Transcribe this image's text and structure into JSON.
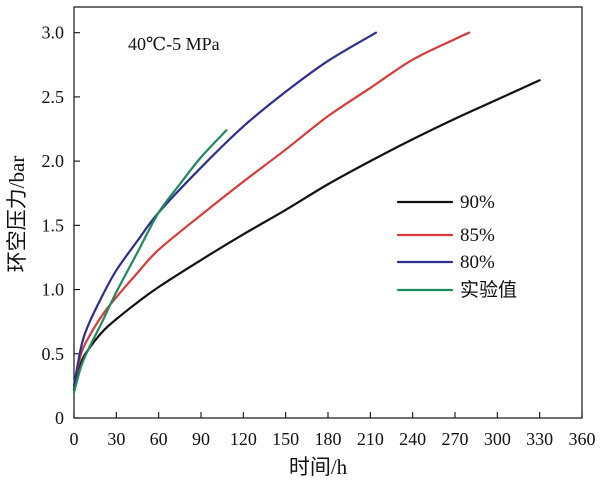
{
  "chart_data": {
    "type": "line",
    "title": "",
    "annotation": "40℃-5 MPa",
    "xlabel": "时间/h",
    "ylabel": "环空压力/bar",
    "xlim": [
      0,
      360
    ],
    "ylim": [
      0,
      3.2
    ],
    "x_ticks": [
      0,
      30,
      60,
      90,
      120,
      150,
      180,
      210,
      240,
      270,
      300,
      330,
      360
    ],
    "y_ticks": [
      0,
      0.5,
      1.0,
      1.5,
      2.0,
      2.5,
      3.0
    ],
    "x_tick_labels": [
      "0",
      "30",
      "60",
      "90",
      "120",
      "150",
      "180",
      "210",
      "240",
      "270",
      "300",
      "330",
      "360"
    ],
    "y_tick_labels": [
      "0",
      "0.5",
      "1.0",
      "1.5",
      "2.0",
      "2.5",
      "3.0"
    ],
    "legend_position": "right",
    "series": [
      {
        "name": "90%",
        "color": "#111111",
        "x": [
          0,
          5,
          10,
          20,
          30,
          45,
          60,
          90,
          120,
          150,
          180,
          210,
          240,
          270,
          300,
          330
        ],
        "y": [
          0.22,
          0.43,
          0.53,
          0.67,
          0.77,
          0.9,
          1.02,
          1.23,
          1.43,
          1.62,
          1.82,
          2.0,
          2.17,
          2.33,
          2.48,
          2.63
        ]
      },
      {
        "name": "85%",
        "color": "#d93a3a",
        "x": [
          0,
          5,
          10,
          20,
          30,
          45,
          60,
          90,
          120,
          150,
          180,
          210,
          240,
          270,
          280
        ],
        "y": [
          0.25,
          0.5,
          0.62,
          0.8,
          0.94,
          1.13,
          1.31,
          1.58,
          1.84,
          2.09,
          2.35,
          2.57,
          2.79,
          2.95,
          3.0
        ]
      },
      {
        "name": "80%",
        "color": "#2d2f8f",
        "x": [
          0,
          5,
          10,
          20,
          30,
          45,
          60,
          90,
          120,
          150,
          180,
          214
        ],
        "y": [
          0.25,
          0.55,
          0.72,
          0.95,
          1.15,
          1.38,
          1.6,
          1.95,
          2.27,
          2.54,
          2.78,
          3.0
        ]
      },
      {
        "name": "实验值",
        "color": "#1f8a5b",
        "x": [
          0,
          5,
          10,
          20,
          30,
          45,
          60,
          75,
          90,
          108
        ],
        "y": [
          0.2,
          0.4,
          0.53,
          0.75,
          0.98,
          1.29,
          1.6,
          1.82,
          2.03,
          2.24
        ]
      }
    ]
  }
}
